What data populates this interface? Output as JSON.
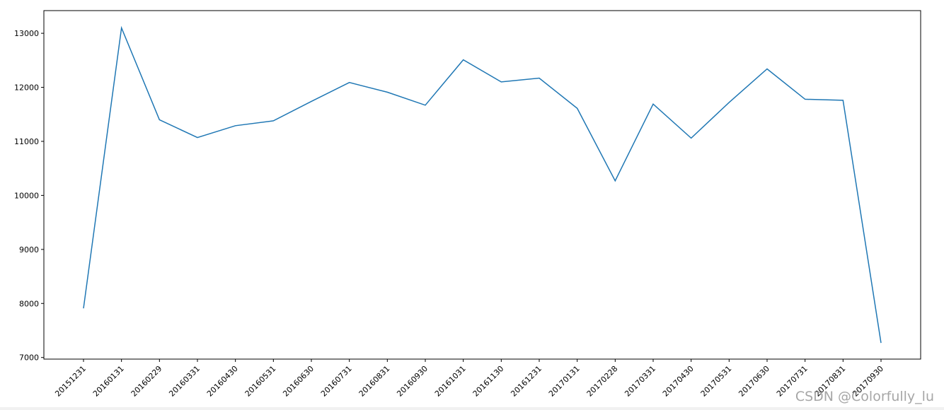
{
  "chart_data": {
    "type": "line",
    "title": "",
    "xlabel": "",
    "ylabel": "",
    "categories": [
      "20151231",
      "20160131",
      "20160229",
      "20160331",
      "20160430",
      "20160531",
      "20160630",
      "20160731",
      "20160831",
      "20160930",
      "20161031",
      "20161130",
      "20161231",
      "20170131",
      "20170228",
      "20170331",
      "20170430",
      "20170531",
      "20170630",
      "20170731",
      "20170831",
      "20170930"
    ],
    "series": [
      {
        "color": "#1f77b4",
        "values": [
          7910,
          13100,
          11400,
          11070,
          11290,
          11380,
          11740,
          12090,
          11910,
          11670,
          12510,
          12100,
          12170,
          11610,
          10270,
          11690,
          11060,
          11720,
          12340,
          11780,
          11760,
          7270
        ]
      }
    ],
    "ylim": [
      6970,
      13420
    ],
    "yticks": [
      7000,
      8000,
      9000,
      10000,
      11000,
      12000,
      13000
    ],
    "grid": false
  },
  "watermark": "CSDN @Colorfully_lu"
}
